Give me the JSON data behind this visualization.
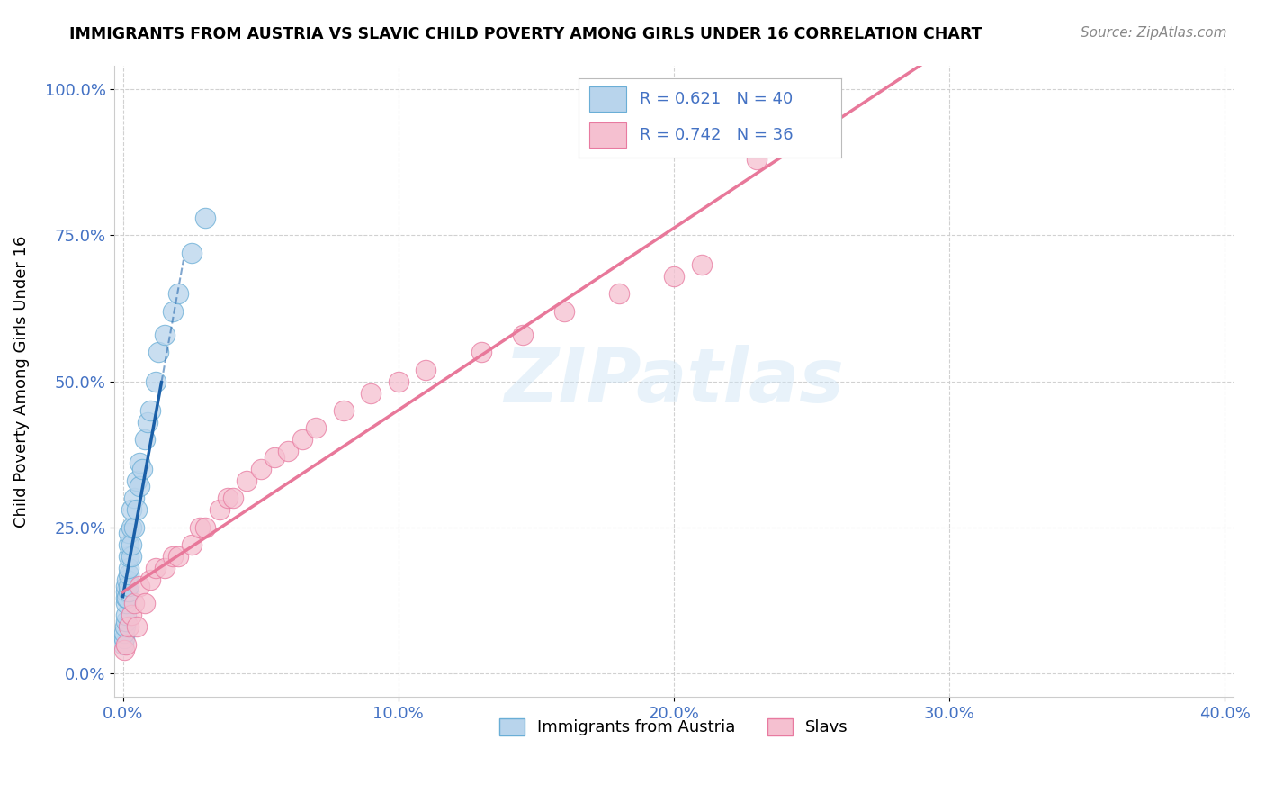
{
  "title": "IMMIGRANTS FROM AUSTRIA VS SLAVIC CHILD POVERTY AMONG GIRLS UNDER 16 CORRELATION CHART",
  "source": "Source: ZipAtlas.com",
  "ylabel": "Child Poverty Among Girls Under 16",
  "xlim": [
    -0.003,
    0.403
  ],
  "ylim": [
    -0.04,
    1.04
  ],
  "xticks": [
    0.0,
    0.1,
    0.2,
    0.3,
    0.4
  ],
  "yticks": [
    0.0,
    0.25,
    0.5,
    0.75,
    1.0
  ],
  "xtick_labels": [
    "0.0%",
    "10.0%",
    "20.0%",
    "30.0%",
    "40.0%"
  ],
  "ytick_labels": [
    "0.0%",
    "25.0%",
    "50.0%",
    "75.0%",
    "100.0%"
  ],
  "austria_fill": "#b8d4ec",
  "austria_edge": "#6aaed6",
  "slavs_fill": "#f5c0d0",
  "slavs_edge": "#e87aa0",
  "austria_line_color": "#1a5fa8",
  "slavs_line_color": "#e8789a",
  "R_austria": 0.621,
  "N_austria": 40,
  "R_slavs": 0.742,
  "N_slavs": 36,
  "watermark": "ZIPatlas",
  "legend_label_austria": "Immigrants from Austria",
  "legend_label_slavs": "Slavs",
  "austria_x": [
    0.0003,
    0.0005,
    0.0005,
    0.0008,
    0.001,
    0.001,
    0.001,
    0.001,
    0.001,
    0.0012,
    0.0015,
    0.0015,
    0.002,
    0.002,
    0.002,
    0.002,
    0.002,
    0.002,
    0.002,
    0.003,
    0.003,
    0.003,
    0.003,
    0.004,
    0.004,
    0.005,
    0.005,
    0.006,
    0.006,
    0.007,
    0.008,
    0.009,
    0.01,
    0.012,
    0.013,
    0.015,
    0.018,
    0.02,
    0.025,
    0.03
  ],
  "austria_y": [
    0.05,
    0.06,
    0.07,
    0.08,
    0.09,
    0.1,
    0.12,
    0.13,
    0.14,
    0.15,
    0.13,
    0.16,
    0.14,
    0.15,
    0.17,
    0.18,
    0.2,
    0.22,
    0.24,
    0.2,
    0.22,
    0.25,
    0.28,
    0.25,
    0.3,
    0.28,
    0.33,
    0.32,
    0.36,
    0.35,
    0.4,
    0.43,
    0.45,
    0.5,
    0.55,
    0.58,
    0.62,
    0.65,
    0.72,
    0.78
  ],
  "slavs_x": [
    0.0005,
    0.001,
    0.002,
    0.003,
    0.004,
    0.005,
    0.006,
    0.008,
    0.01,
    0.012,
    0.015,
    0.018,
    0.02,
    0.025,
    0.028,
    0.03,
    0.035,
    0.038,
    0.04,
    0.045,
    0.05,
    0.055,
    0.06,
    0.065,
    0.07,
    0.08,
    0.09,
    0.1,
    0.11,
    0.13,
    0.145,
    0.16,
    0.18,
    0.2,
    0.21,
    0.23
  ],
  "slavs_y": [
    0.04,
    0.05,
    0.08,
    0.1,
    0.12,
    0.08,
    0.15,
    0.12,
    0.16,
    0.18,
    0.18,
    0.2,
    0.2,
    0.22,
    0.25,
    0.25,
    0.28,
    0.3,
    0.3,
    0.33,
    0.35,
    0.37,
    0.38,
    0.4,
    0.42,
    0.45,
    0.48,
    0.5,
    0.52,
    0.55,
    0.58,
    0.62,
    0.65,
    0.68,
    0.7,
    0.88
  ]
}
